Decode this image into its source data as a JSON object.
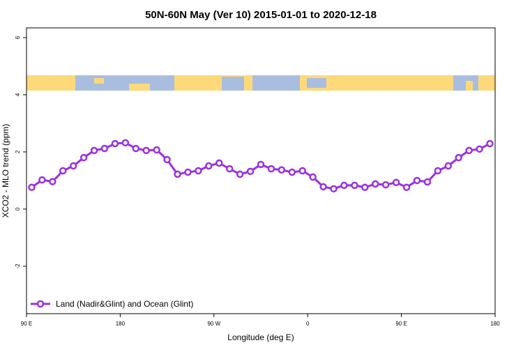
{
  "chart_data": {
    "type": "line",
    "title": "50N-60N May (Ver 10)   2015-01-01 to 2020-12-18",
    "x_label": "Longitude (deg E)",
    "y_label": "XCO2 - MLO trend (ppm)",
    "x": [
      95,
      105,
      115,
      125,
      135,
      145,
      155,
      165,
      175,
      185,
      195,
      205,
      215,
      225,
      235,
      245,
      255,
      265,
      275,
      285,
      295,
      305,
      315,
      325,
      335,
      345,
      355,
      365,
      375,
      385,
      395,
      405,
      415,
      425,
      435,
      445,
      455,
      465,
      475,
      485,
      495,
      505,
      515,
      525,
      535
    ],
    "series": [
      {
        "name": "Land (Nadir&Glint) and Ocean (Glint)",
        "color": "#9b30e0",
        "values": [
          0.76,
          1.02,
          0.96,
          1.34,
          1.51,
          1.8,
          2.05,
          2.12,
          2.29,
          2.32,
          2.12,
          2.05,
          2.07,
          1.73,
          1.22,
          1.29,
          1.34,
          1.51,
          1.61,
          1.41,
          1.22,
          1.32,
          1.56,
          1.41,
          1.37,
          1.29,
          1.34,
          1.12,
          0.78,
          0.71,
          0.83,
          0.83,
          0.76,
          0.88,
          0.85,
          0.93,
          0.76,
          1.0,
          0.95,
          1.34,
          1.51,
          1.8,
          2.05,
          2.1,
          2.29
        ]
      }
    ],
    "xlim": [
      90,
      540
    ],
    "ylim": [
      -3.66,
      6.34
    ],
    "xticks": [
      {
        "value": 90,
        "label": "90 E"
      },
      180,
      {
        "value": 270,
        "label": "90 W"
      },
      {
        "value": 360,
        "label": "0"
      },
      {
        "value": 450,
        "label": "90 E"
      },
      {
        "value": 540,
        "label": "180"
      }
    ],
    "yticks": [
      -2,
      0,
      2,
      4,
      6
    ],
    "legend": "lower left"
  }
}
